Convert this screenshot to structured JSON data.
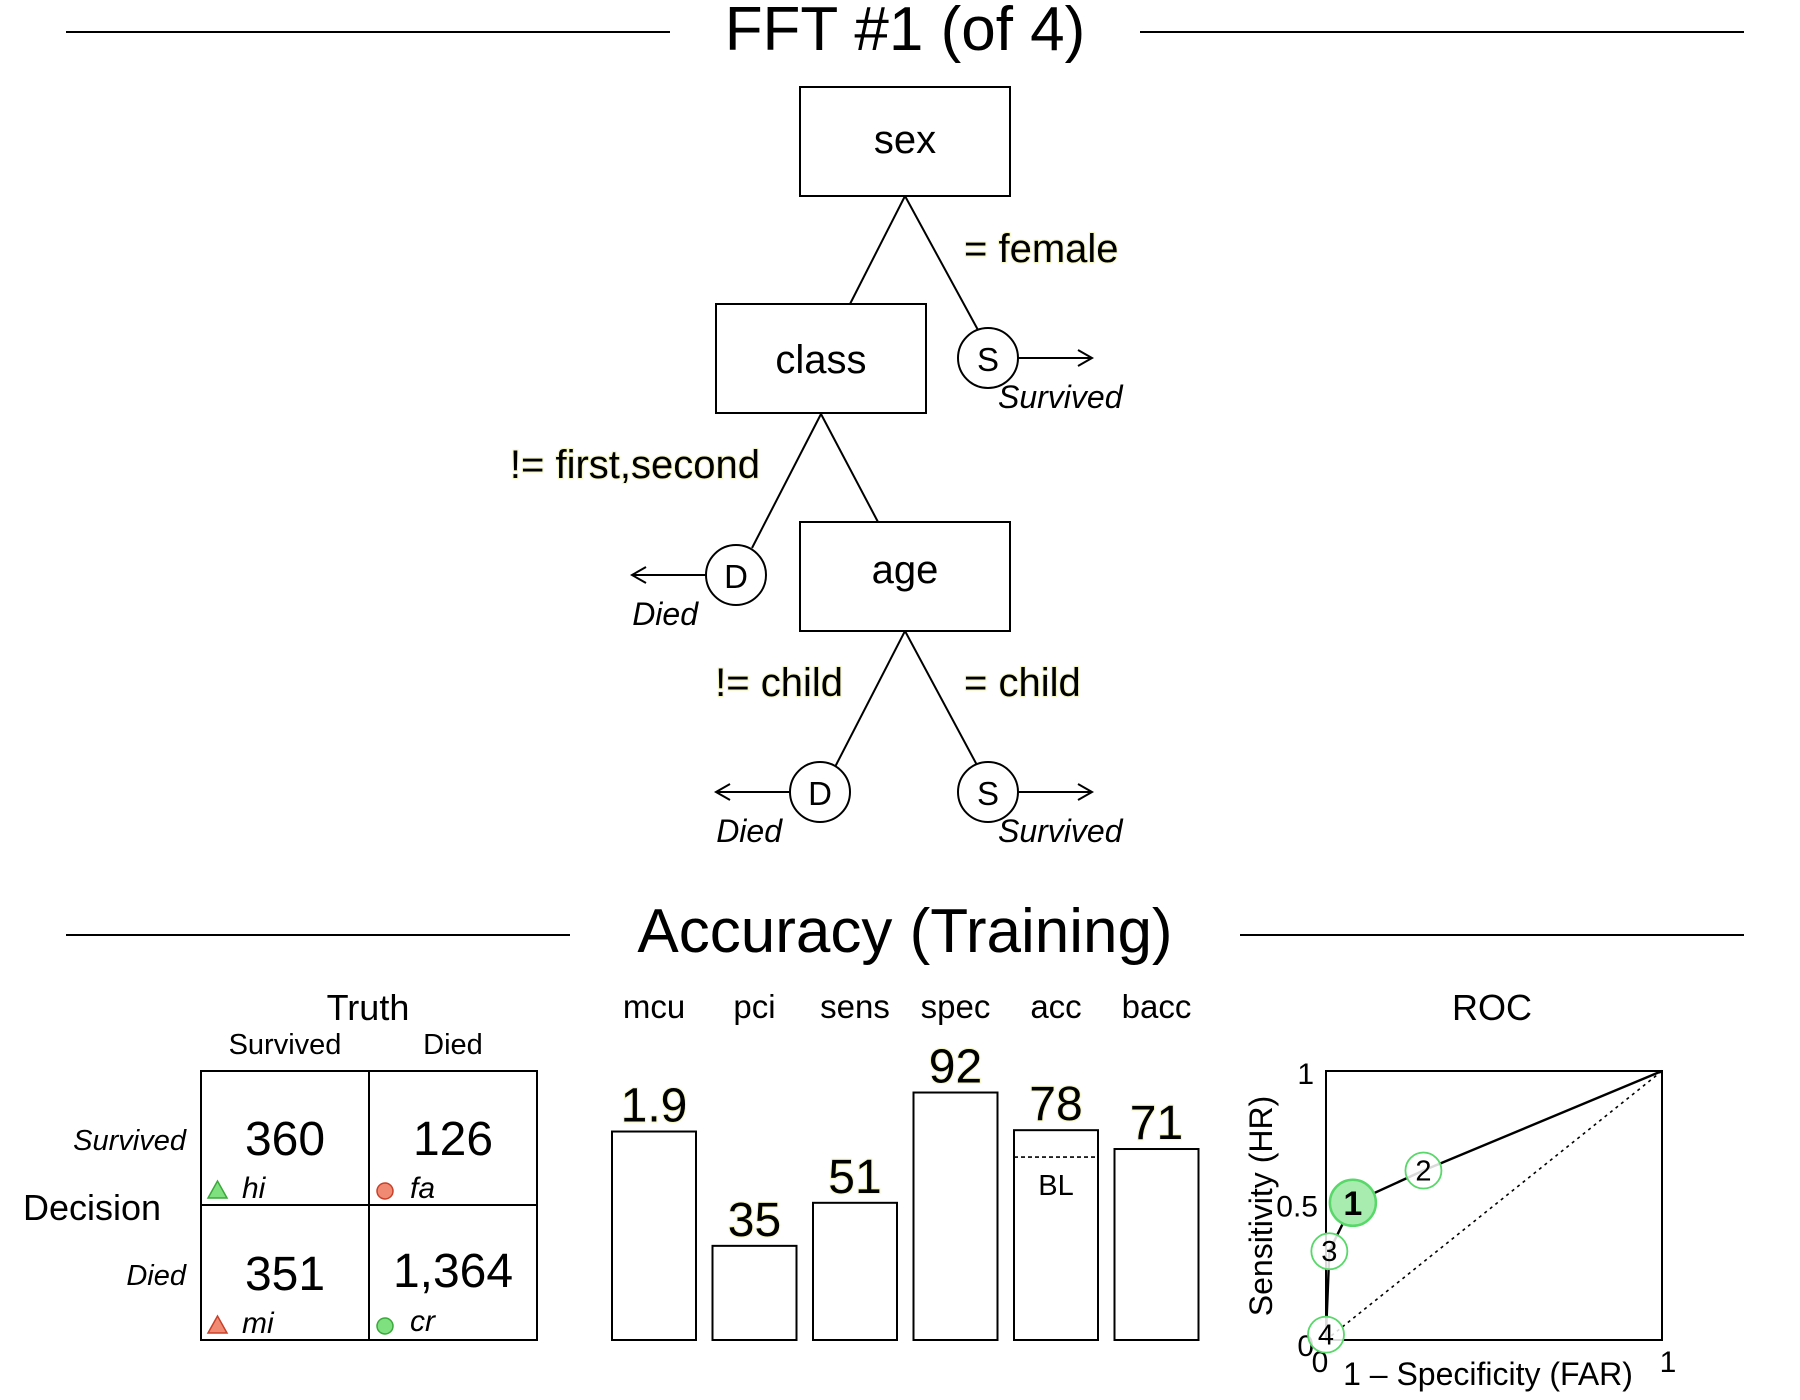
{
  "tree": {
    "title": "FFT #1 (of 4)",
    "cues": [
      "sex",
      "class",
      "age"
    ],
    "edges": {
      "sex_right": "= female",
      "class_left": "!= first,second",
      "age_left": "!= child",
      "age_right": "= child"
    },
    "exits": {
      "sex_exit": {
        "symbol": "S",
        "label": "Survived"
      },
      "class_exit": {
        "symbol": "D",
        "label": "Died"
      },
      "age_exit_left": {
        "symbol": "D",
        "label": "Died"
      },
      "age_exit_right": {
        "symbol": "S",
        "label": "Survived"
      }
    }
  },
  "accuracy": {
    "title": "Accuracy (Training)",
    "confusion": {
      "truth_label": "Truth",
      "decision_label": "Decision",
      "col_labels": [
        "Survived",
        "Died"
      ],
      "row_labels": [
        "Survived",
        "Died"
      ],
      "cells": [
        {
          "value": "360",
          "code": "hi",
          "marker": "triangle",
          "color": "#7fe07f"
        },
        {
          "value": "126",
          "code": "fa",
          "marker": "circle",
          "color": "#f08a72"
        },
        {
          "value": "351",
          "code": "mi",
          "marker": "triangle",
          "color": "#f08a72"
        },
        {
          "value": "1,364",
          "code": "cr",
          "marker": "circle",
          "color": "#7fe07f"
        }
      ]
    },
    "baseline_label": "BL"
  },
  "chart_data": [
    {
      "type": "bar",
      "categories": [
        "mcu",
        "pci",
        "sens",
        "spec",
        "acc",
        "bacc"
      ],
      "values": [
        1.9,
        35,
        51,
        92,
        78,
        71
      ],
      "value_labels": [
        "1.9",
        "35",
        "51",
        "92",
        "78",
        "71"
      ],
      "ylim": [
        0,
        100
      ],
      "baseline": {
        "category": "acc",
        "value": 68
      },
      "note": "mcu bar height on 5 to 1 reversed scale"
    },
    {
      "type": "line",
      "title": "ROC",
      "xlabel": "1 – Specificity (FAR)",
      "ylabel": "Sensitivity (HR)",
      "xlim": [
        0,
        1
      ],
      "ylim": [
        0,
        1
      ],
      "x_ticks": [
        "0",
        "1"
      ],
      "y_ticks": [
        "0",
        "0.5",
        "1"
      ],
      "points": [
        {
          "label": "1",
          "x": 0.08,
          "y": 0.51
        },
        {
          "label": "2",
          "x": 0.29,
          "y": 0.63
        },
        {
          "label": "3",
          "x": 0.01,
          "y": 0.33
        },
        {
          "label": "4",
          "x": 0.0,
          "y": 0.02
        }
      ],
      "point_colors": {
        "selected_fill": "#a8ecb0",
        "edge": "#57d868",
        "other_text": "#8c8c8c"
      }
    }
  ]
}
